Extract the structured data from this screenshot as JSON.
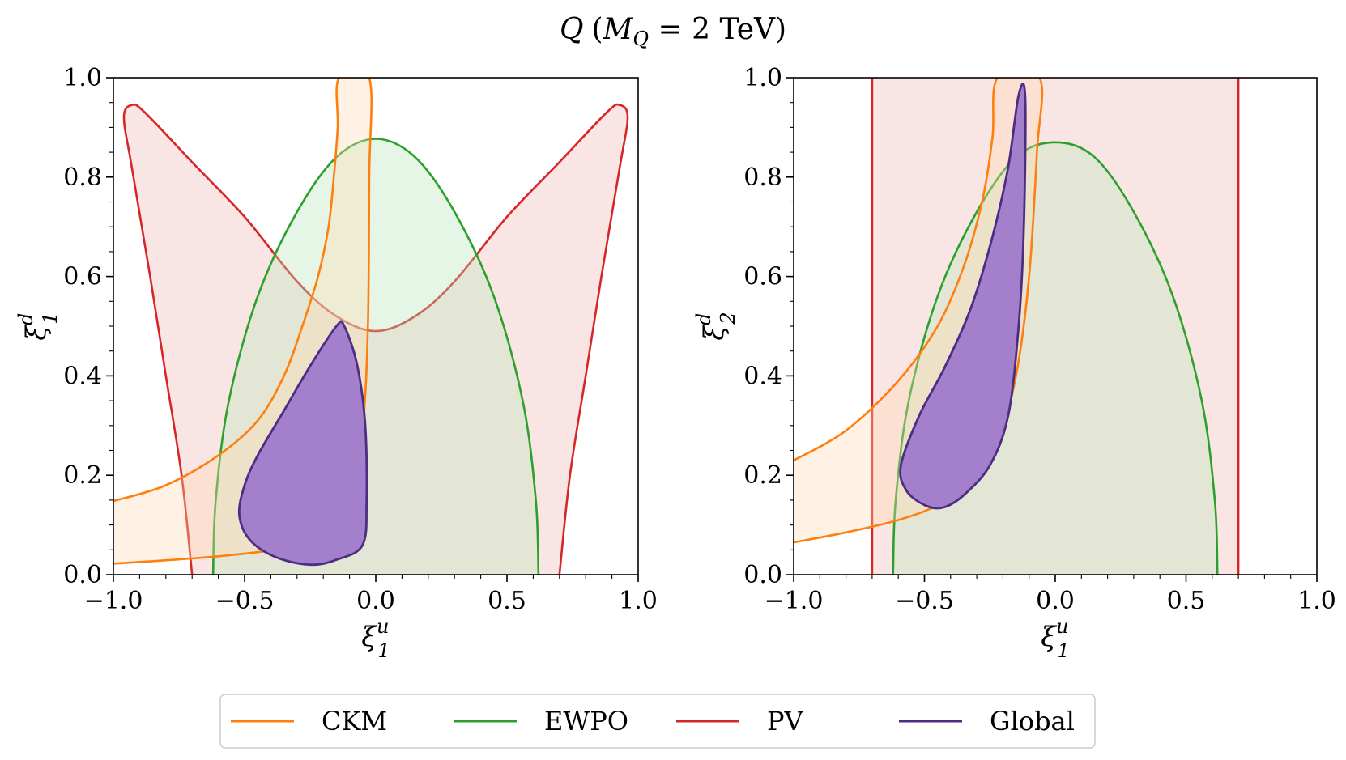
{
  "figure": {
    "title": "Q (M_Q = 2 TeV)",
    "title_parts": {
      "q": "Q",
      "open": "(",
      "m": "M",
      "sub": "Q",
      "rest": " = 2 TeV)"
    }
  },
  "legend": {
    "placement": "bottom-center",
    "entries": [
      {
        "name": "CKM",
        "color": "#ff7f0e"
      },
      {
        "name": "EWPO",
        "color": "#2ca02c"
      },
      {
        "name": "PV",
        "color": "#d62728"
      },
      {
        "name": "Global",
        "color": "#4b2e83"
      }
    ]
  },
  "chart_data": [
    {
      "type": "contour",
      "panel": "left",
      "xlabel": {
        "base": "ξ",
        "sup": "u",
        "sub": "1"
      },
      "ylabel": {
        "base": "ξ",
        "sup": "d",
        "sub": "1"
      },
      "xlim": [
        -1.0,
        1.0
      ],
      "ylim": [
        0.0,
        1.0
      ],
      "xticks": [
        -1.0,
        -0.5,
        0.0,
        0.5,
        1.0
      ],
      "xtick_labels": [
        "−1.0",
        "−0.5",
        "0.0",
        "0.5",
        "1.0"
      ],
      "yticks": [
        0.0,
        0.2,
        0.4,
        0.6,
        0.8,
        1.0
      ],
      "ytick_labels": [
        "0.0",
        "0.2",
        "0.4",
        "0.6",
        "0.8",
        "1.0"
      ],
      "grid": false,
      "regions": [
        {
          "name": "PV",
          "color": "#d62728",
          "fill": "#f5c5c5",
          "fill_opacity": 0.45,
          "points": [
            [
              -0.7,
              0.0
            ],
            [
              -0.74,
              0.2
            ],
            [
              -0.8,
              0.4
            ],
            [
              -0.86,
              0.6
            ],
            [
              -0.93,
              0.82
            ],
            [
              -0.96,
              0.92
            ],
            [
              -0.93,
              0.945
            ],
            [
              -0.88,
              0.93
            ],
            [
              -0.7,
              0.83
            ],
            [
              -0.5,
              0.72
            ],
            [
              -0.3,
              0.59
            ],
            [
              -0.15,
              0.52
            ],
            [
              0.0,
              0.49
            ],
            [
              0.15,
              0.52
            ],
            [
              0.3,
              0.59
            ],
            [
              0.5,
              0.72
            ],
            [
              0.7,
              0.83
            ],
            [
              0.88,
              0.93
            ],
            [
              0.93,
              0.945
            ],
            [
              0.96,
              0.92
            ],
            [
              0.93,
              0.82
            ],
            [
              0.86,
              0.6
            ],
            [
              0.8,
              0.4
            ],
            [
              0.74,
              0.2
            ],
            [
              0.7,
              0.0
            ]
          ]
        },
        {
          "name": "EWPO",
          "color": "#2ca02c",
          "fill": "#b7e4b7",
          "fill_opacity": 0.35,
          "points": [
            [
              -0.62,
              0.0
            ],
            [
              -0.61,
              0.15
            ],
            [
              -0.56,
              0.35
            ],
            [
              -0.45,
              0.56
            ],
            [
              -0.3,
              0.73
            ],
            [
              -0.15,
              0.84
            ],
            [
              0.0,
              0.877
            ],
            [
              0.15,
              0.84
            ],
            [
              0.3,
              0.73
            ],
            [
              0.45,
              0.56
            ],
            [
              0.56,
              0.35
            ],
            [
              0.61,
              0.15
            ],
            [
              0.62,
              0.0
            ]
          ]
        },
        {
          "name": "CKM",
          "color": "#ff7f0e",
          "fill": "#ffd9b3",
          "fill_opacity": 0.35,
          "points": [
            [
              -1.0,
              0.148
            ],
            [
              -0.8,
              0.18
            ],
            [
              -0.6,
              0.24
            ],
            [
              -0.45,
              0.31
            ],
            [
              -0.35,
              0.4
            ],
            [
              -0.28,
              0.5
            ],
            [
              -0.22,
              0.6
            ],
            [
              -0.18,
              0.7
            ],
            [
              -0.16,
              0.8
            ],
            [
              -0.145,
              0.9
            ],
            [
              -0.14,
              1.0
            ],
            [
              -0.025,
              1.0
            ],
            [
              -0.025,
              0.8
            ],
            [
              -0.03,
              0.5
            ],
            [
              -0.05,
              0.3
            ],
            [
              -0.1,
              0.17
            ],
            [
              -0.2,
              0.09
            ],
            [
              -0.35,
              0.055
            ],
            [
              -0.6,
              0.037
            ],
            [
              -1.0,
              0.022
            ]
          ]
        },
        {
          "name": "Global",
          "color": "#4b2e83",
          "fill": "#a47fcb",
          "fill_opacity": 1.0,
          "points": [
            [
              -0.15,
              0.5
            ],
            [
              -0.25,
              0.42
            ],
            [
              -0.35,
              0.33
            ],
            [
              -0.45,
              0.24
            ],
            [
              -0.5,
              0.18
            ],
            [
              -0.52,
              0.12
            ],
            [
              -0.48,
              0.07
            ],
            [
              -0.38,
              0.035
            ],
            [
              -0.25,
              0.02
            ],
            [
              -0.15,
              0.03
            ],
            [
              -0.05,
              0.06
            ],
            [
              -0.035,
              0.15
            ],
            [
              -0.04,
              0.3
            ],
            [
              -0.07,
              0.42
            ],
            [
              -0.12,
              0.5
            ]
          ]
        }
      ]
    },
    {
      "type": "contour",
      "panel": "right",
      "xlabel": {
        "base": "ξ",
        "sup": "u",
        "sub": "1"
      },
      "ylabel": {
        "base": "ξ",
        "sup": "d",
        "sub": "2"
      },
      "xlim": [
        -1.0,
        1.0
      ],
      "ylim": [
        0.0,
        1.0
      ],
      "xticks": [
        -1.0,
        -0.5,
        0.0,
        0.5,
        1.0
      ],
      "xtick_labels": [
        "−1.0",
        "−0.5",
        "0.0",
        "0.5",
        "1.0"
      ],
      "yticks": [
        0.0,
        0.2,
        0.4,
        0.6,
        0.8,
        1.0
      ],
      "ytick_labels": [
        "0.0",
        "0.2",
        "0.4",
        "0.6",
        "0.8",
        "1.0"
      ],
      "grid": false,
      "regions": [
        {
          "name": "PV",
          "color": "#d62728",
          "fill": "#f5c5c5",
          "fill_opacity": 0.45,
          "band": {
            "xmin": -0.7,
            "xmax": 0.7
          }
        },
        {
          "name": "EWPO",
          "color": "#2ca02c",
          "fill": "#b7e4b7",
          "fill_opacity": 0.35,
          "points": [
            [
              -0.62,
              0.0
            ],
            [
              -0.61,
              0.15
            ],
            [
              -0.56,
              0.35
            ],
            [
              -0.45,
              0.56
            ],
            [
              -0.3,
              0.73
            ],
            [
              -0.15,
              0.84
            ],
            [
              0.0,
              0.87
            ],
            [
              0.15,
              0.84
            ],
            [
              0.3,
              0.73
            ],
            [
              0.45,
              0.56
            ],
            [
              0.56,
              0.35
            ],
            [
              0.61,
              0.15
            ],
            [
              0.62,
              0.0
            ]
          ]
        },
        {
          "name": "CKM",
          "color": "#ff7f0e",
          "fill": "#ffd9b3",
          "fill_opacity": 0.35,
          "points": [
            [
              -1.0,
              0.23
            ],
            [
              -0.8,
              0.29
            ],
            [
              -0.6,
              0.39
            ],
            [
              -0.45,
              0.5
            ],
            [
              -0.35,
              0.62
            ],
            [
              -0.28,
              0.75
            ],
            [
              -0.24,
              0.88
            ],
            [
              -0.22,
              1.0
            ],
            [
              -0.06,
              1.0
            ],
            [
              -0.07,
              0.85
            ],
            [
              -0.1,
              0.6
            ],
            [
              -0.15,
              0.4
            ],
            [
              -0.22,
              0.27
            ],
            [
              -0.32,
              0.19
            ],
            [
              -0.45,
              0.14
            ],
            [
              -0.6,
              0.11
            ],
            [
              -0.8,
              0.085
            ],
            [
              -1.0,
              0.065
            ]
          ]
        },
        {
          "name": "Global",
          "color": "#4b2e83",
          "fill": "#a47fcb",
          "fill_opacity": 1.0,
          "points": [
            [
              -0.14,
              0.965
            ],
            [
              -0.18,
              0.82
            ],
            [
              -0.24,
              0.68
            ],
            [
              -0.32,
              0.54
            ],
            [
              -0.42,
              0.42
            ],
            [
              -0.52,
              0.32
            ],
            [
              -0.59,
              0.22
            ],
            [
              -0.57,
              0.17
            ],
            [
              -0.5,
              0.14
            ],
            [
              -0.43,
              0.135
            ],
            [
              -0.35,
              0.16
            ],
            [
              -0.25,
              0.22
            ],
            [
              -0.18,
              0.32
            ],
            [
              -0.14,
              0.5
            ],
            [
              -0.12,
              0.7
            ],
            [
              -0.115,
              0.96
            ]
          ]
        }
      ]
    }
  ]
}
